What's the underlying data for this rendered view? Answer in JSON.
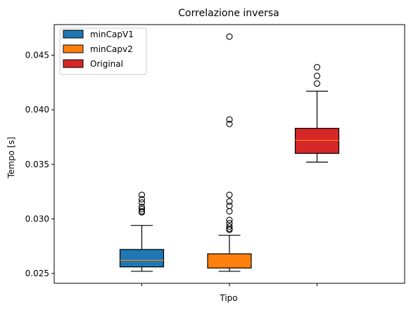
{
  "chart_data": {
    "type": "box",
    "title": "Correlazione inversa",
    "xlabel": "Tipo",
    "ylabel": "Tempo [s]",
    "ylim": [
      0.0241,
      0.0478
    ],
    "yticks": [
      0.025,
      0.03,
      0.035,
      0.04,
      0.045
    ],
    "ytick_labels": [
      "0.025",
      "0.030",
      "0.035",
      "0.040",
      "0.045"
    ],
    "xtick_count": 3,
    "legend": {
      "position": "top-left",
      "entries": [
        "minCapV1",
        "minCapv2",
        "Original"
      ]
    },
    "series": [
      {
        "name": "minCapV1",
        "color": "#1f77b4",
        "q1": 0.0256,
        "median": 0.0262,
        "q3": 0.0272,
        "whisker_low": 0.0252,
        "whisker_high": 0.0294,
        "outliers": [
          0.0306,
          0.0307,
          0.0309,
          0.0311,
          0.0315,
          0.0318,
          0.0322
        ]
      },
      {
        "name": "minCapv2",
        "color": "#ff7f0e",
        "q1": 0.0255,
        "median": 0.026,
        "q3": 0.0268,
        "whisker_low": 0.0252,
        "whisker_high": 0.0285,
        "outliers": [
          0.029,
          0.0291,
          0.0293,
          0.0296,
          0.0299,
          0.0307,
          0.0312,
          0.0316,
          0.0322,
          0.0387,
          0.0391,
          0.0467
        ]
      },
      {
        "name": "Original",
        "color": "#d62728",
        "q1": 0.036,
        "median": 0.0372,
        "q3": 0.0383,
        "whisker_low": 0.0352,
        "whisker_high": 0.0417,
        "outliers": [
          0.0424,
          0.0431,
          0.0439
        ]
      }
    ],
    "median_color": "#ff7f0e"
  }
}
